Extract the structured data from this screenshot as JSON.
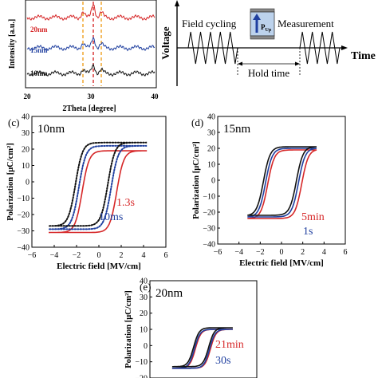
{
  "panel_a": {
    "ylabel": "Intensity [a.u.]",
    "xlabel": "2Theta [degree]",
    "xticks": [
      "20",
      "30",
      "40"
    ],
    "series": [
      {
        "name": "20nm",
        "color": "#d62728"
      },
      {
        "name": "15nm",
        "color": "#1f3f9f"
      },
      {
        "name": "10nm",
        "color": "#111111"
      }
    ]
  },
  "panel_b": {
    "ylabel": "Voltage",
    "xlabel": "Time",
    "label_cycling": "Field cycling",
    "label_measure": "Measurement",
    "label_hold": "Hold time",
    "device_label": "P",
    "device_sub": "Up"
  },
  "chart_data": [
    {
      "type": "line",
      "panel": "(c)",
      "annotation": "10nm",
      "xlabel": "Electric field [MV/cm]",
      "ylabel": "Polarization [μC/cm²]",
      "xlim": [
        -6,
        6
      ],
      "ylim": [
        -40,
        40
      ],
      "xticks": [
        -6,
        -4,
        -2,
        0,
        2,
        4,
        6
      ],
      "yticks": [
        -40,
        -30,
        -20,
        -10,
        0,
        10,
        20,
        30,
        40
      ],
      "series": [
        {
          "name": "1.3s",
          "color": "#d62728",
          "style": "solid",
          "x": [
            -4.5,
            4.3
          ],
          "y": [
            -31,
            19
          ],
          "pr_pos": 7,
          "pr_neg": -19,
          "ec_pos": 1.6,
          "ec_neg": -1.5
        },
        {
          "name": "10ms",
          "color": "#1f3f9f",
          "style": "dotted",
          "x": [
            -4.5,
            4.3
          ],
          "y": [
            -29,
            22
          ],
          "pr_pos": 15,
          "pr_neg": -14,
          "ec_pos": 1.1,
          "ec_neg": -1.8
        },
        {
          "name": "",
          "color": "#111111",
          "style": "dotted",
          "x": [
            -4.5,
            4.3
          ],
          "y": [
            -27,
            24
          ],
          "pr_pos": 17,
          "pr_neg": -13,
          "ec_pos": 0.8,
          "ec_neg": -2.1
        }
      ]
    },
    {
      "type": "line",
      "panel": "(d)",
      "annotation": "15nm",
      "xlabel": "Electric field [MV/cm]",
      "ylabel": "Polarization [μC/cm²]",
      "xlim": [
        -6,
        6
      ],
      "ylim": [
        -40,
        40
      ],
      "xticks": [
        -6,
        -4,
        -2,
        0,
        2,
        4,
        6
      ],
      "yticks": [
        -40,
        -30,
        -20,
        -10,
        0,
        10,
        20,
        30,
        40
      ],
      "series": [
        {
          "name": "5min",
          "color": "#d62728",
          "style": "solid",
          "x": [
            -3.2,
            3.3
          ],
          "y": [
            -24,
            19
          ],
          "pr_pos": 6,
          "pr_neg": -13,
          "ec_pos": 1.9,
          "ec_neg": -1.3
        },
        {
          "name": "1s",
          "color": "#1f3f9f",
          "style": "solid",
          "x": [
            -3.2,
            3.3
          ],
          "y": [
            -23,
            20
          ],
          "pr_pos": 9,
          "pr_neg": -12,
          "ec_pos": 1.6,
          "ec_neg": -1.5
        },
        {
          "name": "",
          "color": "#111111",
          "style": "solid",
          "x": [
            -3.2,
            3.3
          ],
          "y": [
            -22,
            21
          ],
          "pr_pos": 12,
          "pr_neg": -11,
          "ec_pos": 1.4,
          "ec_neg": -1.7
        }
      ]
    },
    {
      "type": "line",
      "panel": "(e)",
      "annotation": "20nm",
      "xlabel": "",
      "ylabel": "Polarization [μC/cm²]",
      "xlim": [
        -6,
        6
      ],
      "ylim": [
        -20,
        40
      ],
      "xticks": [],
      "yticks": [
        -20,
        -10,
        0,
        10,
        20,
        30,
        40
      ],
      "series": [
        {
          "name": "21min",
          "color": "#d62728",
          "style": "solid",
          "x": [
            -3.5,
            3.3
          ],
          "y": [
            -14,
            10
          ],
          "pr_pos": 2,
          "pr_neg": -7,
          "ec_pos": 0.8,
          "ec_neg": -0.9
        },
        {
          "name": "30s",
          "color": "#1f3f9f",
          "style": "solid",
          "x": [
            -3.5,
            3.3
          ],
          "y": [
            -14,
            10
          ],
          "pr_pos": 3,
          "pr_neg": -6,
          "ec_pos": 0.7,
          "ec_neg": -1.0
        },
        {
          "name": "",
          "color": "#111111",
          "style": "solid",
          "x": [
            -3.5,
            3.3
          ],
          "y": [
            -13,
            11
          ],
          "pr_pos": 4,
          "pr_neg": -5,
          "ec_pos": 0.6,
          "ec_neg": -1.1
        }
      ]
    }
  ]
}
